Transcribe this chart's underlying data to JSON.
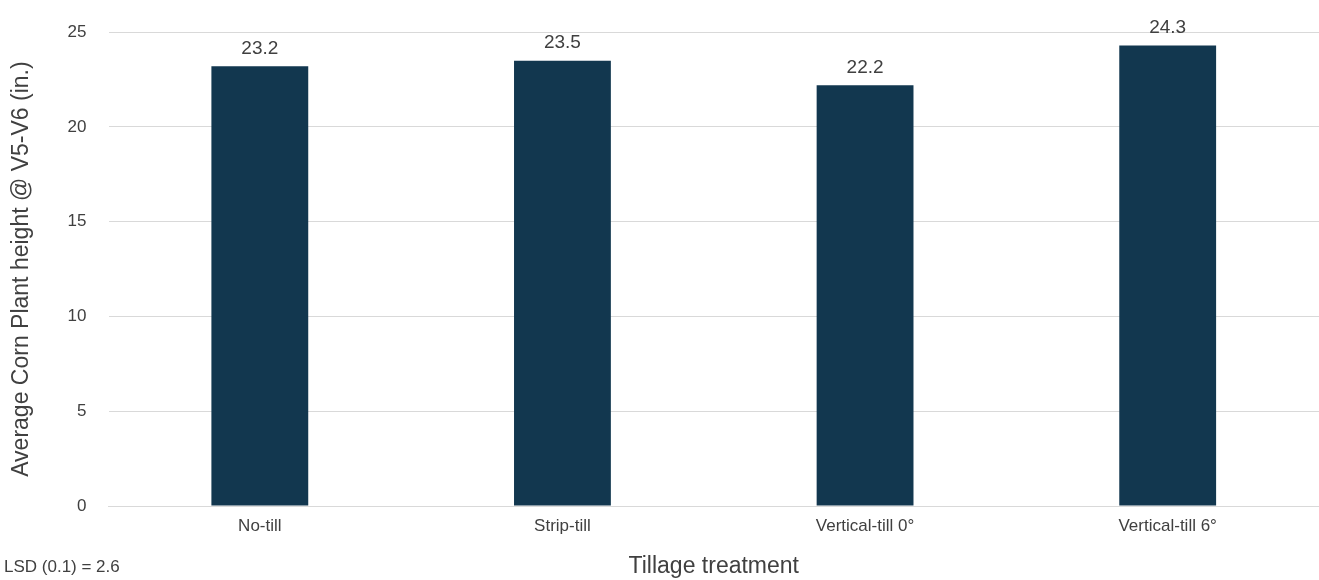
{
  "chart_data": {
    "type": "bar",
    "xlabel": "Tillage treatment",
    "ylabel": "Average Corn Plant height @ V5-V6 (in.)",
    "categories": [
      "No-till",
      "Strip-till",
      "Vertical-till 0°",
      "Vertical-till 6°"
    ],
    "values": [
      23.2,
      23.5,
      22.2,
      24.3
    ],
    "color": "#12374f",
    "ylim": [
      0,
      25
    ],
    "yticks": [
      0,
      5,
      10,
      15,
      20,
      25
    ],
    "grid": "y",
    "legend": false,
    "data_labels": true,
    "annotations": [
      "LSD (0.1) = 2.6"
    ]
  }
}
